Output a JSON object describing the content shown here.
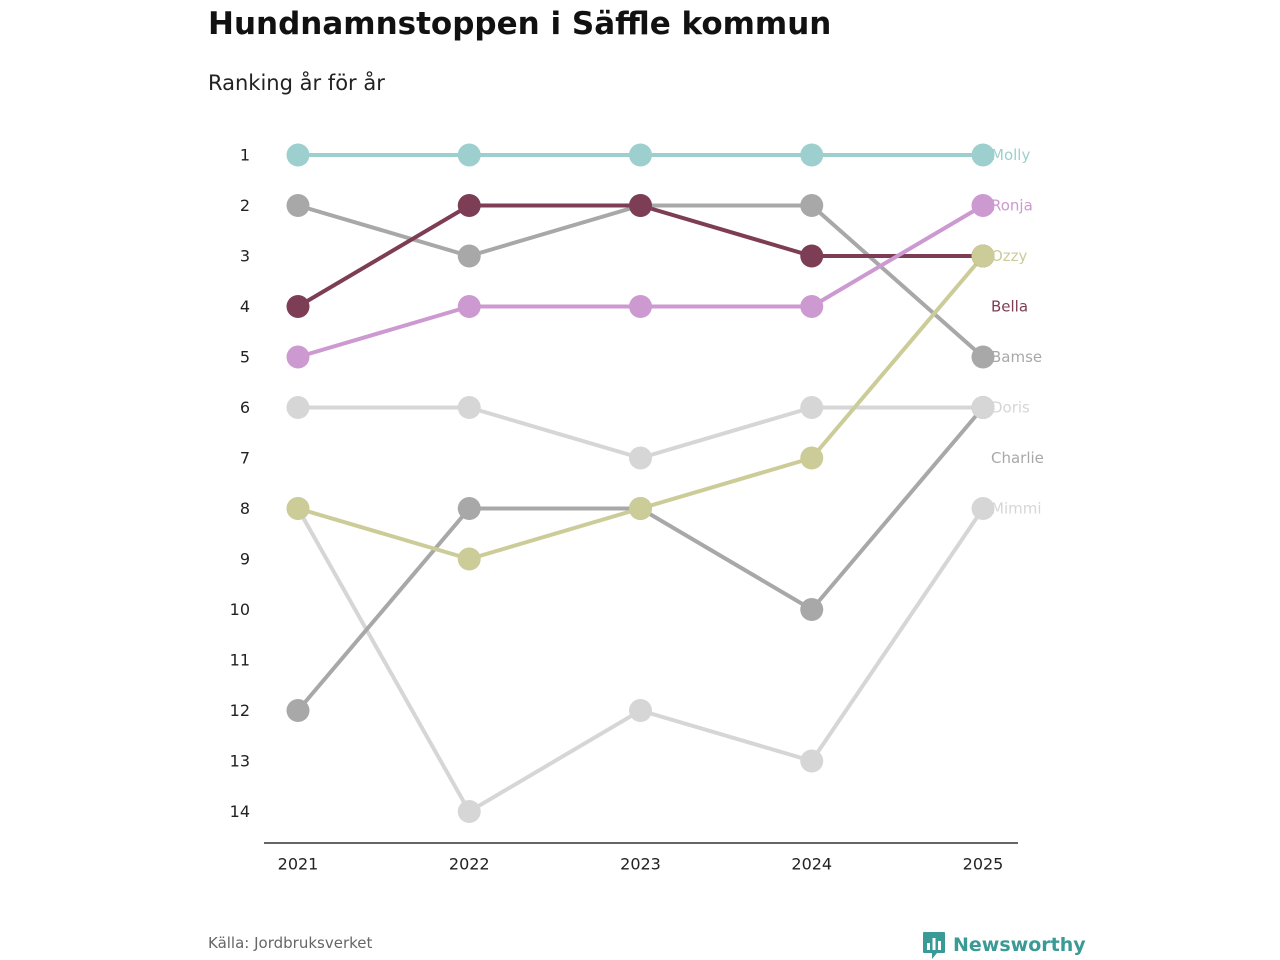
{
  "title": "Hundnamnstoppen i Säffle kommun",
  "subtitle": "Ranking år för år",
  "source": "Källa: Jordbruksverket",
  "brand": {
    "name": "Newsworthy",
    "icon": "bar-chart-logo-icon",
    "color": "#3a9a95"
  },
  "chart_data": {
    "type": "line",
    "title": "Hundnamnstoppen i Säffle kommun",
    "subtitle": "Ranking år för år",
    "x": [
      "2021",
      "2022",
      "2023",
      "2024",
      "2025"
    ],
    "yticks": [
      "1",
      "2",
      "3",
      "4",
      "5",
      "6",
      "7",
      "8",
      "9",
      "10",
      "11",
      "12",
      "13",
      "14"
    ],
    "ylim": [
      1,
      14
    ],
    "y_reversed": true,
    "xlabel": "",
    "ylabel": "",
    "grid": false,
    "series": [
      {
        "name": "Molly",
        "color": "#9ccfcd",
        "values": [
          1,
          1,
          1,
          1,
          1
        ]
      },
      {
        "name": "Ronja",
        "color": "#cc99d0",
        "values": [
          5,
          4,
          4,
          4,
          2
        ]
      },
      {
        "name": "Ozzy",
        "color": "#cccc99",
        "values": [
          8,
          9,
          8,
          7,
          3
        ]
      },
      {
        "name": "Bella",
        "color": "#7d3d55",
        "values": [
          4,
          2,
          2,
          3,
          3
        ]
      },
      {
        "name": "Bamse",
        "color": "#a8a8a8",
        "values": [
          2,
          3,
          2,
          2,
          5
        ]
      },
      {
        "name": "Doris",
        "color": "#d6d6d6",
        "values": [
          6,
          6,
          7,
          6,
          6
        ]
      },
      {
        "name": "Charlie",
        "color": "#a8a8a8",
        "values": [
          12,
          8,
          8,
          10,
          6
        ]
      },
      {
        "name": "Mimmi",
        "color": "#d6d6d6",
        "values": [
          8,
          14,
          12,
          13,
          8
        ]
      }
    ],
    "label_order": [
      "Molly",
      "Ronja",
      "Ozzy",
      "Bella",
      "Bamse",
      "Doris",
      "Charlie",
      "Mimmi"
    ]
  }
}
